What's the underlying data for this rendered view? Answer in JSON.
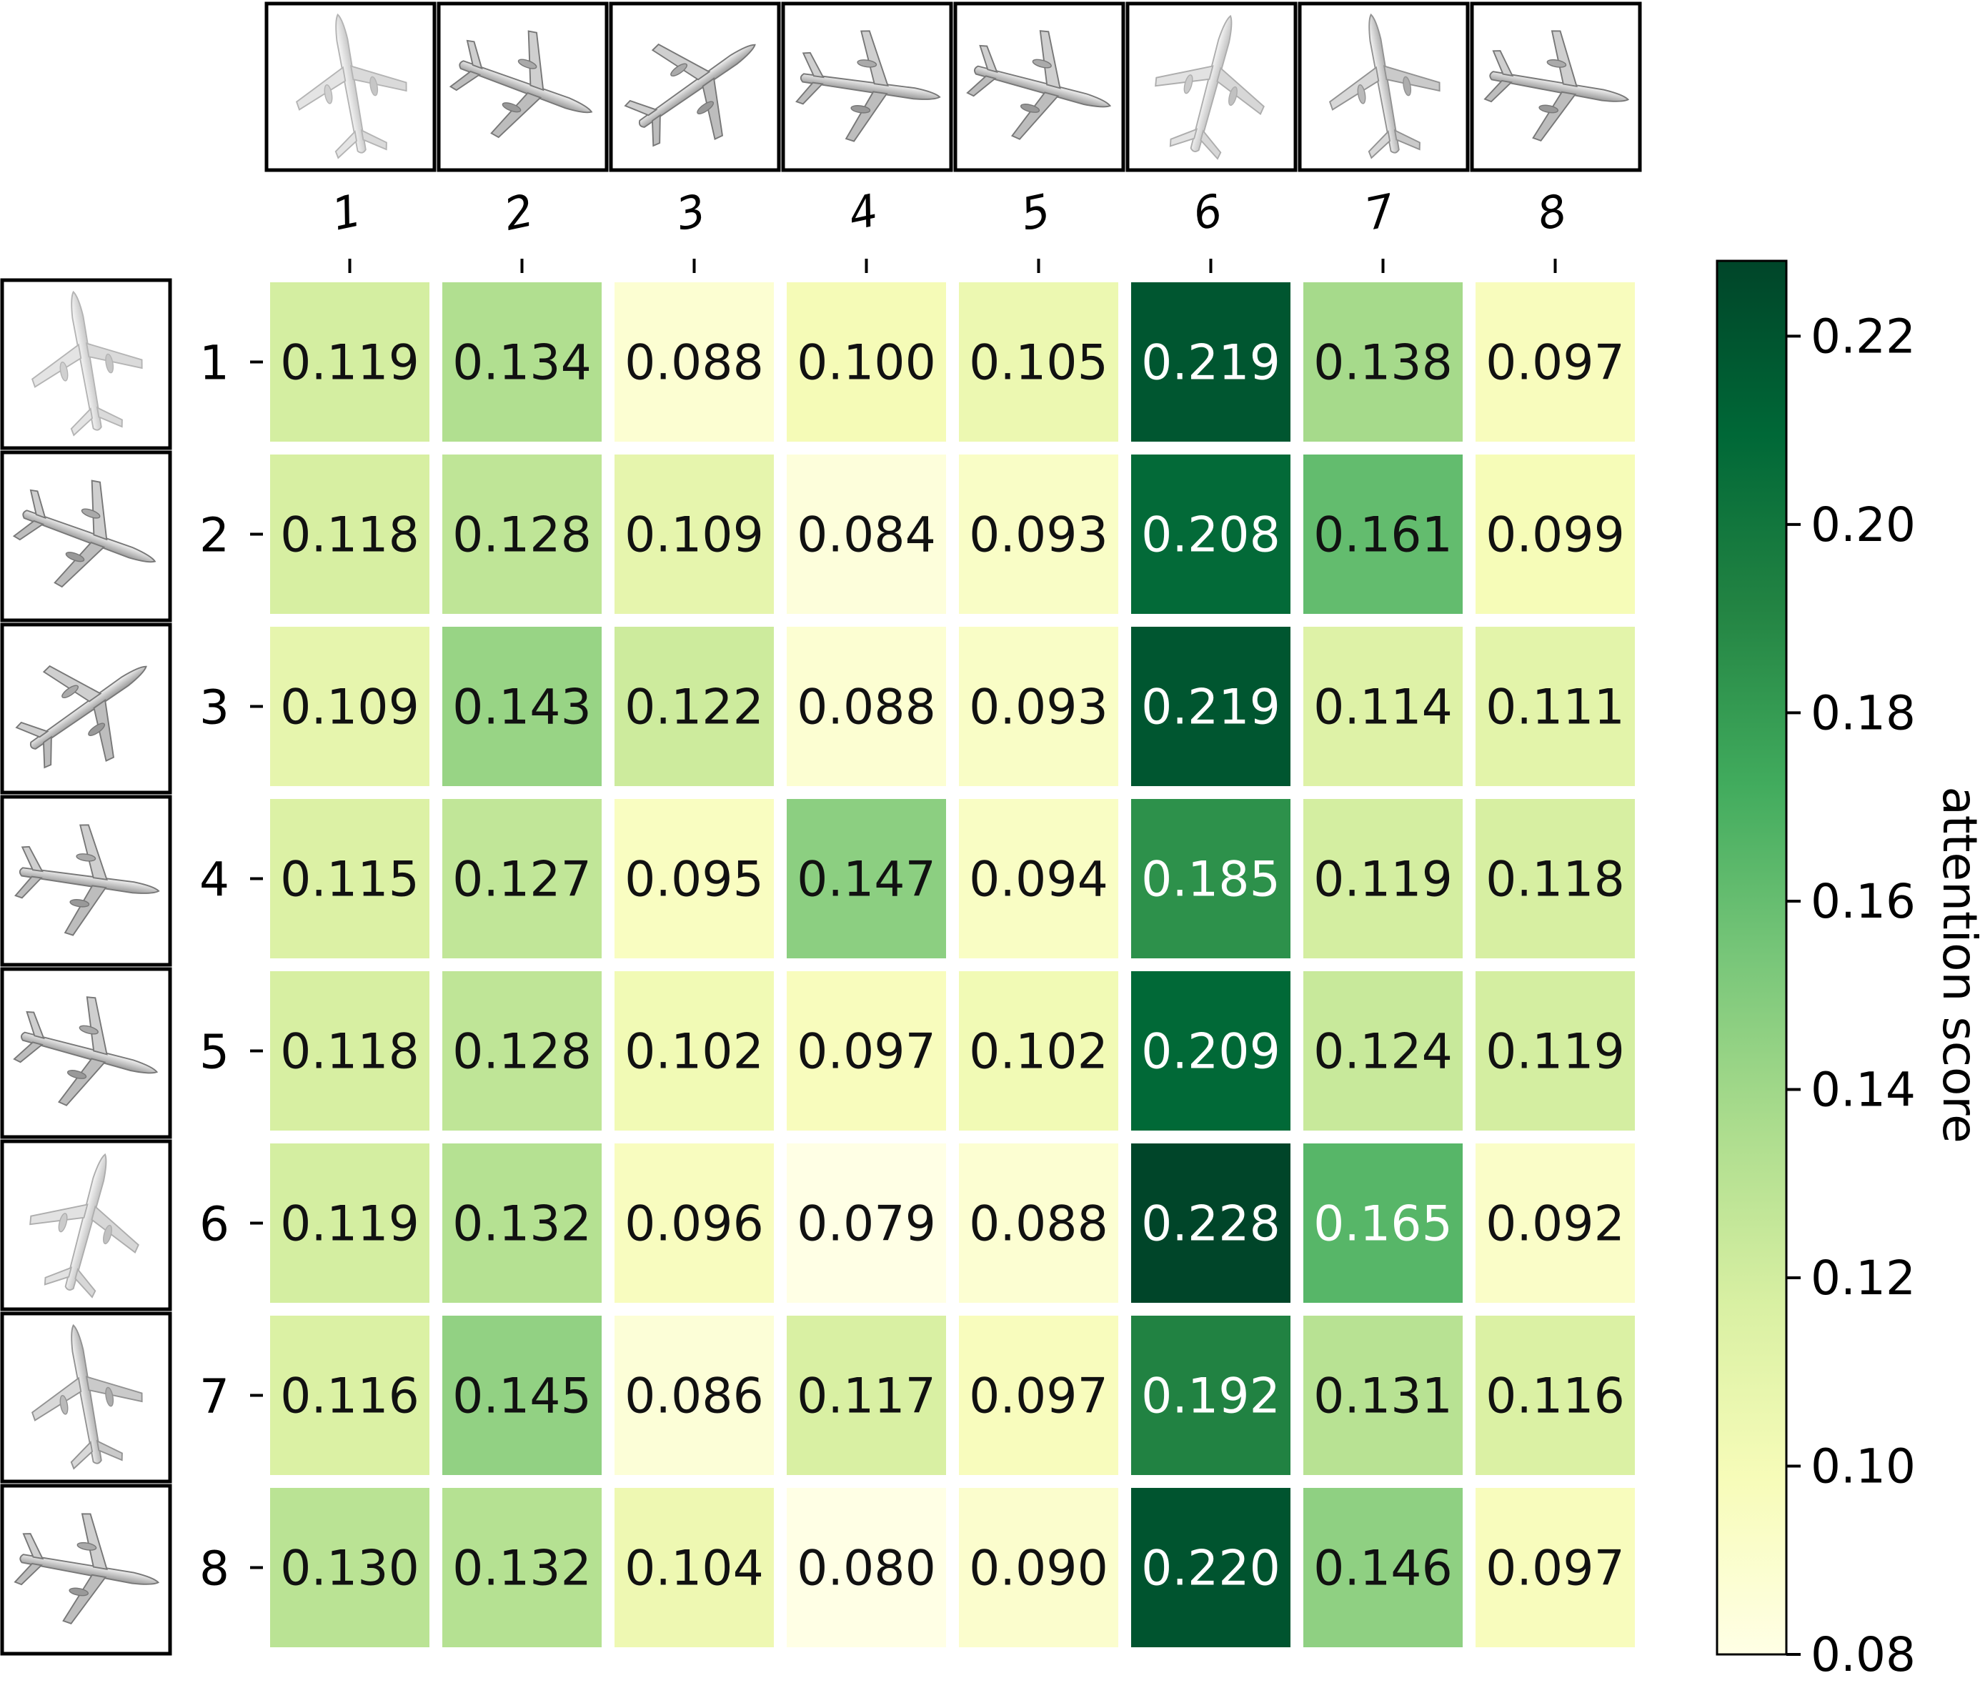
{
  "chart_data": {
    "type": "heatmap",
    "title": "",
    "x_categories": [
      "1",
      "2",
      "3",
      "4",
      "5",
      "6",
      "7",
      "8"
    ],
    "y_categories": [
      "1",
      "2",
      "3",
      "4",
      "5",
      "6",
      "7",
      "8"
    ],
    "values": [
      [
        0.119,
        0.134,
        0.088,
        0.1,
        0.105,
        0.219,
        0.138,
        0.097
      ],
      [
        0.118,
        0.128,
        0.109,
        0.084,
        0.093,
        0.208,
        0.161,
        0.099
      ],
      [
        0.109,
        0.143,
        0.122,
        0.088,
        0.093,
        0.219,
        0.114,
        0.111
      ],
      [
        0.115,
        0.127,
        0.095,
        0.147,
        0.094,
        0.185,
        0.119,
        0.118
      ],
      [
        0.118,
        0.128,
        0.102,
        0.097,
        0.102,
        0.209,
        0.124,
        0.119
      ],
      [
        0.119,
        0.132,
        0.096,
        0.079,
        0.088,
        0.228,
        0.165,
        0.092
      ],
      [
        0.116,
        0.145,
        0.086,
        0.117,
        0.097,
        0.192,
        0.131,
        0.116
      ],
      [
        0.13,
        0.132,
        0.104,
        0.08,
        0.09,
        0.22,
        0.146,
        0.097
      ]
    ],
    "value_labels": [
      [
        "0.119",
        "0.134",
        "0.088",
        "0.100",
        "0.105",
        "0.219",
        "0.138",
        "0.097"
      ],
      [
        "0.118",
        "0.128",
        "0.109",
        "0.084",
        "0.093",
        "0.208",
        "0.161",
        "0.099"
      ],
      [
        "0.109",
        "0.143",
        "0.122",
        "0.088",
        "0.093",
        "0.219",
        "0.114",
        "0.111"
      ],
      [
        "0.115",
        "0.127",
        "0.095",
        "0.147",
        "0.094",
        "0.185",
        "0.119",
        "0.118"
      ],
      [
        "0.118",
        "0.128",
        "0.102",
        "0.097",
        "0.102",
        "0.209",
        "0.124",
        "0.119"
      ],
      [
        "0.119",
        "0.132",
        "0.096",
        "0.079",
        "0.088",
        "0.228",
        "0.165",
        "0.092"
      ],
      [
        "0.116",
        "0.145",
        "0.086",
        "0.117",
        "0.097",
        "0.192",
        "0.131",
        "0.116"
      ],
      [
        "0.130",
        "0.132",
        "0.104",
        "0.080",
        "0.090",
        "0.220",
        "0.146",
        "0.097"
      ]
    ],
    "colorbar": {
      "label": "attention score",
      "range": [
        0.08,
        0.228
      ],
      "ticks": [
        0.08,
        0.1,
        0.12,
        0.14,
        0.16,
        0.18,
        0.2,
        0.22
      ],
      "tick_labels": [
        "0.08",
        "0.10",
        "0.12",
        "0.14",
        "0.16",
        "0.18",
        "0.20",
        "0.22"
      ],
      "colormap": "YlGn",
      "stops": [
        "#ffffe5",
        "#f7fcb9",
        "#d9f0a3",
        "#addd8e",
        "#78c679",
        "#41ab5d",
        "#238443",
        "#006837",
        "#004529"
      ]
    },
    "x_thumbnails": [
      "airplane-view-1",
      "airplane-view-2",
      "airplane-view-3",
      "airplane-view-4",
      "airplane-view-5",
      "airplane-view-6",
      "airplane-view-7",
      "airplane-view-8"
    ],
    "y_thumbnails": [
      "airplane-view-1",
      "airplane-view-2",
      "airplane-view-3",
      "airplane-view-4",
      "airplane-view-5",
      "airplane-view-6",
      "airplane-view-7",
      "airplane-view-8"
    ],
    "grid": false,
    "legend": "colorbar-right"
  }
}
